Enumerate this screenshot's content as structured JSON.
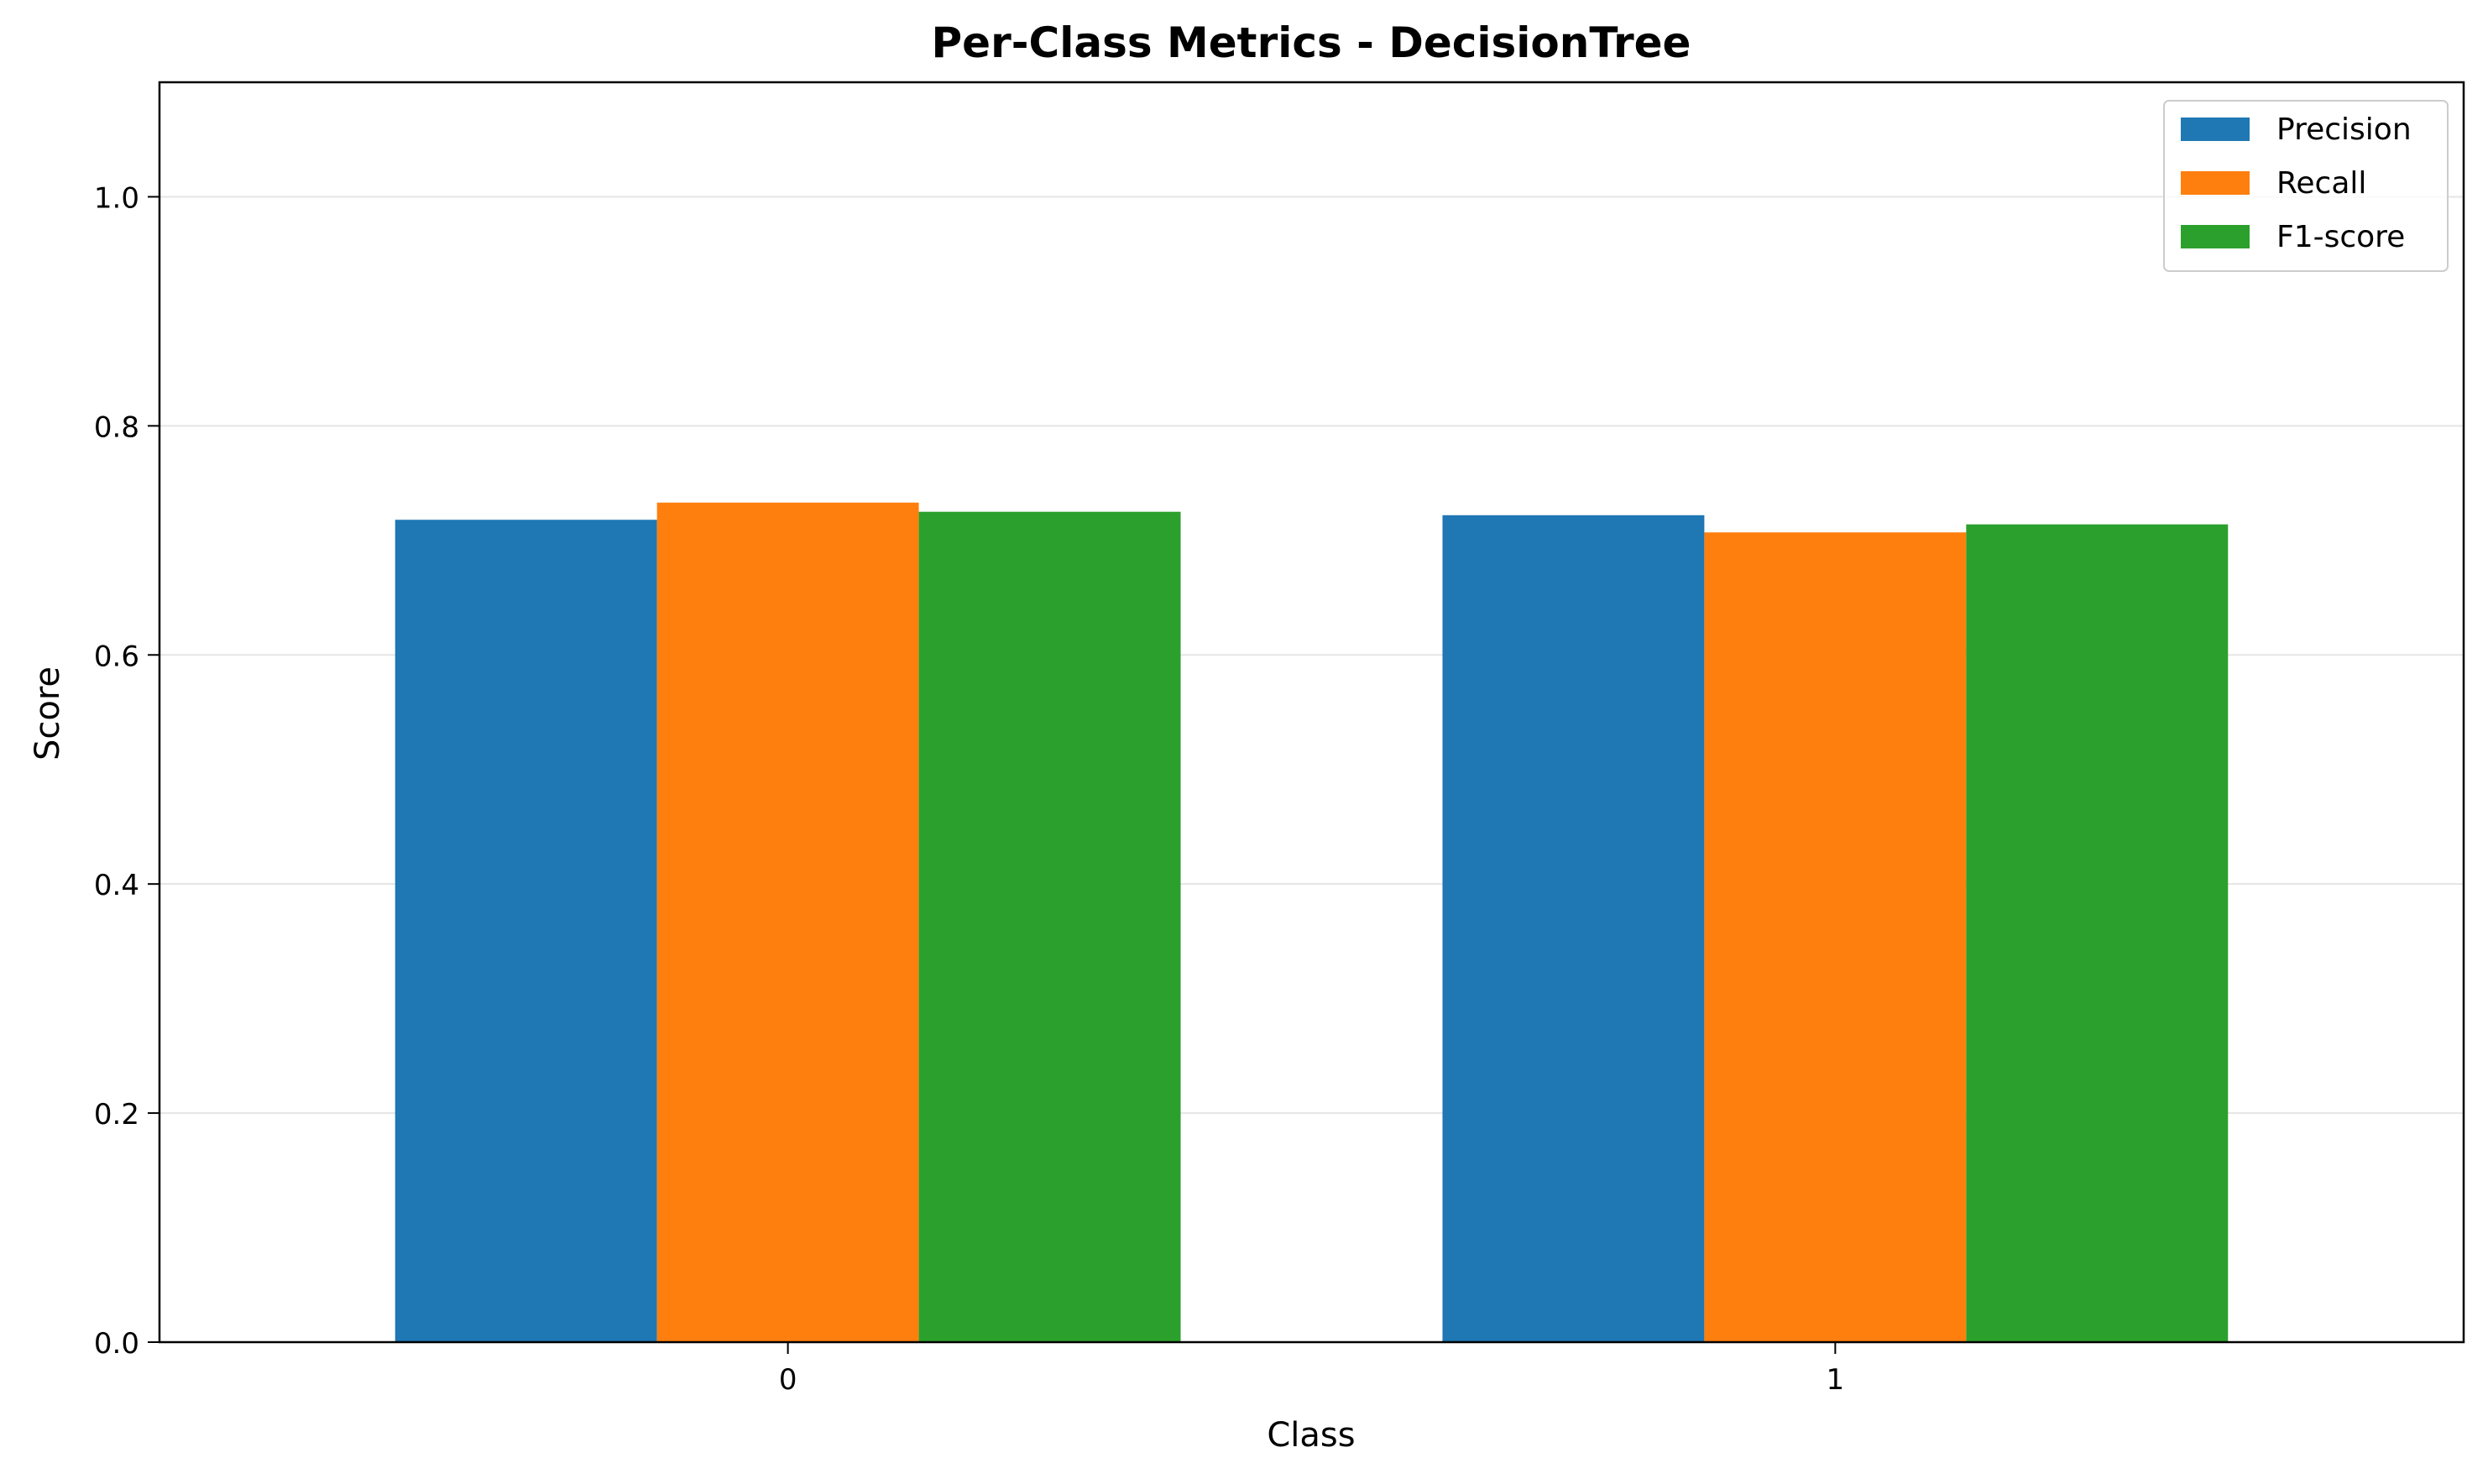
{
  "chart_data": {
    "type": "bar",
    "title": "Per-Class Metrics - DecisionTree",
    "xlabel": "Class",
    "ylabel": "Score",
    "categories": [
      "0",
      "1"
    ],
    "series": [
      {
        "name": "Precision",
        "color": "#1f77b4",
        "values": [
          0.718,
          0.722
        ]
      },
      {
        "name": "Recall",
        "color": "#ff7f0e",
        "values": [
          0.733,
          0.707
        ]
      },
      {
        "name": "F1-score",
        "color": "#2ca02c",
        "values": [
          0.725,
          0.714
        ]
      }
    ],
    "ylim": [
      0,
      1.1
    ],
    "yticks": [
      "0.0",
      "0.2",
      "0.4",
      "0.6",
      "0.8",
      "1.0"
    ],
    "grid": "y",
    "legend_position": "top-right"
  }
}
